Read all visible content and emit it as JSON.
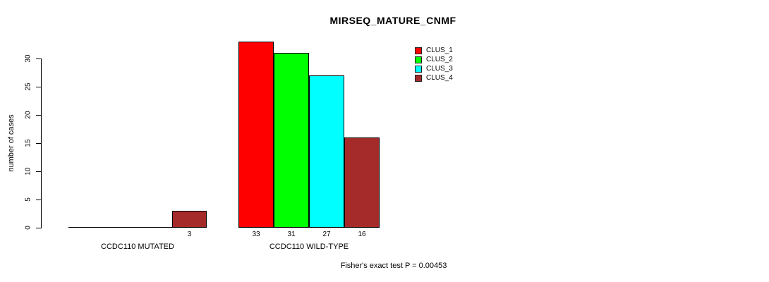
{
  "chart_data": {
    "type": "bar",
    "title": "MIRSEQ_MATURE_CNMF",
    "ylabel": "number of cases",
    "xlabel": "",
    "ylim": [
      0,
      33
    ],
    "yticks": [
      0,
      5,
      10,
      15,
      20,
      25,
      30
    ],
    "grid": false,
    "legend_position": "top-right",
    "groups": [
      "CCDC110 MUTATED",
      "CCDC110 WILD-TYPE"
    ],
    "series": [
      {
        "name": "CLUS_1",
        "color": "#ff0000",
        "values": [
          0,
          33
        ]
      },
      {
        "name": "CLUS_2",
        "color": "#00ff00",
        "values": [
          0,
          31
        ]
      },
      {
        "name": "CLUS_3",
        "color": "#00ffff",
        "values": [
          0,
          27
        ]
      },
      {
        "name": "CLUS_4",
        "color": "#a52a2a",
        "values": [
          3,
          16
        ]
      }
    ],
    "bar_value_labels_shown": [
      [
        "",
        "",
        "",
        "3"
      ],
      [
        "33",
        "31",
        "27",
        "16"
      ]
    ],
    "annotation": "Fisher's exact test P = 0.00453"
  },
  "colors": {
    "background": "#ffffff",
    "text": "#000000",
    "bar_border": "#000000",
    "axis": "#000000"
  }
}
